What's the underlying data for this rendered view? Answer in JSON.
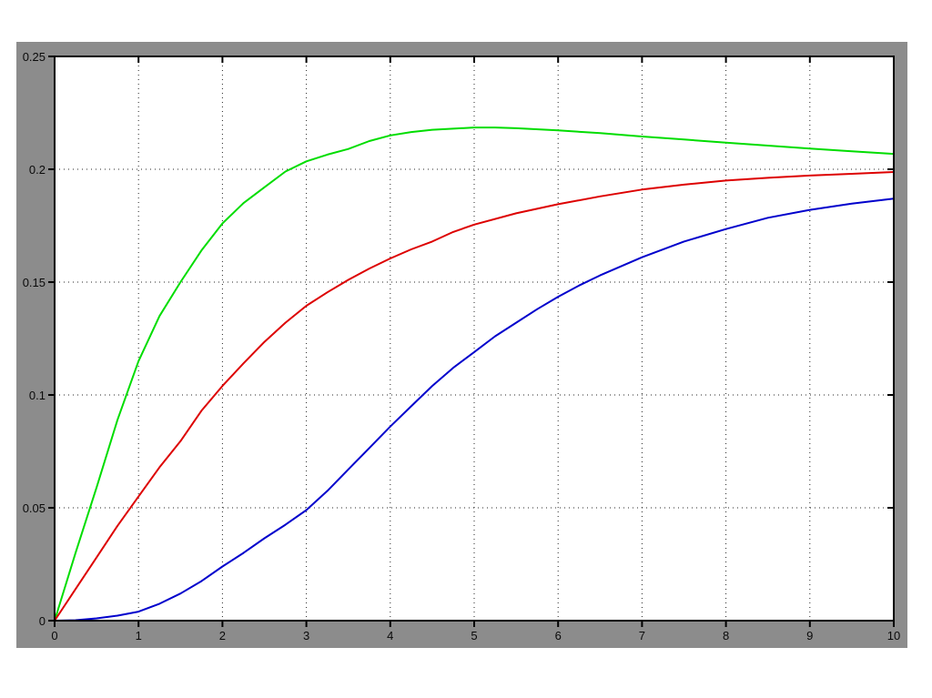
{
  "figure": {
    "panel_bg": "#8c8c8c",
    "plot_bg": "#ffffff",
    "axis_color": "#000000",
    "grid_color": "#242424",
    "tick_label_color": "#0a0a0a"
  },
  "chart_data": {
    "type": "line",
    "title": "",
    "xlabel": "",
    "ylabel": "",
    "xlim": [
      0,
      10
    ],
    "ylim": [
      0,
      0.25
    ],
    "grid": true,
    "grid_style": "dotted",
    "legend": null,
    "xticks": {
      "values": [
        0,
        1,
        2,
        3,
        4,
        5,
        6,
        7,
        8,
        9,
        10
      ],
      "labels": [
        "0",
        "1",
        "2",
        "3",
        "4",
        "5",
        "6",
        "7",
        "8",
        "9",
        "10"
      ]
    },
    "yticks": {
      "values": [
        0,
        0.05,
        0.1,
        0.15,
        0.2,
        0.25
      ],
      "labels": [
        "0",
        "0.05",
        "0.1",
        "0.15",
        "0.2",
        "0.25"
      ]
    },
    "series": [
      {
        "name": "green-curve",
        "color": "#00dd00",
        "width": 2,
        "points": [
          [
            0,
            0
          ],
          [
            0.25,
            0.03
          ],
          [
            0.5,
            0.059
          ],
          [
            0.75,
            0.089
          ],
          [
            1,
            0.115
          ],
          [
            1.25,
            0.135
          ],
          [
            1.5,
            0.15
          ],
          [
            1.75,
            0.164
          ],
          [
            2,
            0.176
          ],
          [
            2.25,
            0.185
          ],
          [
            2.5,
            0.192
          ],
          [
            2.75,
            0.199
          ],
          [
            3,
            0.2035
          ],
          [
            3.25,
            0.2065
          ],
          [
            3.5,
            0.209
          ],
          [
            3.75,
            0.2125
          ],
          [
            4,
            0.215
          ],
          [
            4.25,
            0.2165
          ],
          [
            4.5,
            0.2175
          ],
          [
            4.75,
            0.218
          ],
          [
            5,
            0.2185
          ],
          [
            5.25,
            0.2185
          ],
          [
            5.5,
            0.2182
          ],
          [
            6,
            0.2172
          ],
          [
            6.5,
            0.216
          ],
          [
            7,
            0.2145
          ],
          [
            7.5,
            0.2132
          ],
          [
            8,
            0.2118
          ],
          [
            8.5,
            0.2105
          ],
          [
            9,
            0.2092
          ],
          [
            9.5,
            0.208
          ],
          [
            10,
            0.2068
          ]
        ]
      },
      {
        "name": "red-curve",
        "color": "#dd0000",
        "width": 2,
        "points": [
          [
            0,
            0
          ],
          [
            0.25,
            0.014
          ],
          [
            0.5,
            0.028
          ],
          [
            0.75,
            0.042
          ],
          [
            1,
            0.055
          ],
          [
            1.25,
            0.068
          ],
          [
            1.5,
            0.0795
          ],
          [
            1.75,
            0.093
          ],
          [
            2,
            0.104
          ],
          [
            2.25,
            0.114
          ],
          [
            2.5,
            0.1235
          ],
          [
            2.75,
            0.132
          ],
          [
            3,
            0.1395
          ],
          [
            3.25,
            0.1455
          ],
          [
            3.5,
            0.151
          ],
          [
            3.75,
            0.156
          ],
          [
            4,
            0.1605
          ],
          [
            4.25,
            0.1645
          ],
          [
            4.5,
            0.168
          ],
          [
            4.75,
            0.1722
          ],
          [
            5,
            0.1755
          ],
          [
            5.5,
            0.1805
          ],
          [
            6,
            0.1845
          ],
          [
            6.5,
            0.188
          ],
          [
            7,
            0.191
          ],
          [
            7.5,
            0.1932
          ],
          [
            8,
            0.195
          ],
          [
            8.5,
            0.1962
          ],
          [
            9,
            0.1972
          ],
          [
            9.5,
            0.198
          ],
          [
            10,
            0.1988
          ]
        ]
      },
      {
        "name": "blue-curve",
        "color": "#0000cc",
        "width": 2,
        "points": [
          [
            0,
            0
          ],
          [
            0.25,
            0.0002
          ],
          [
            0.5,
            0.001
          ],
          [
            0.75,
            0.0022
          ],
          [
            1,
            0.004
          ],
          [
            1.25,
            0.0075
          ],
          [
            1.5,
            0.012
          ],
          [
            1.75,
            0.0175
          ],
          [
            2,
            0.024
          ],
          [
            2.25,
            0.03
          ],
          [
            2.5,
            0.0365
          ],
          [
            2.75,
            0.0425
          ],
          [
            3,
            0.049
          ],
          [
            3.25,
            0.0575
          ],
          [
            3.5,
            0.067
          ],
          [
            3.75,
            0.0765
          ],
          [
            4,
            0.086
          ],
          [
            4.25,
            0.095
          ],
          [
            4.5,
            0.104
          ],
          [
            4.75,
            0.112
          ],
          [
            5,
            0.119
          ],
          [
            5.25,
            0.126
          ],
          [
            5.5,
            0.132
          ],
          [
            5.75,
            0.138
          ],
          [
            6,
            0.1435
          ],
          [
            6.25,
            0.1485
          ],
          [
            6.5,
            0.153
          ],
          [
            7,
            0.161
          ],
          [
            7.5,
            0.168
          ],
          [
            8,
            0.1735
          ],
          [
            8.5,
            0.1785
          ],
          [
            9,
            0.182
          ],
          [
            9.5,
            0.1848
          ],
          [
            10,
            0.187
          ]
        ]
      }
    ]
  }
}
